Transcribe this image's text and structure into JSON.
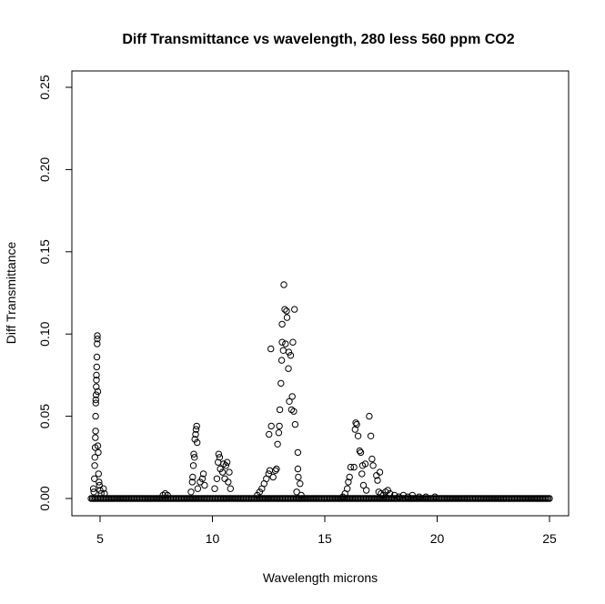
{
  "chart_data": {
    "type": "scatter",
    "title": "Diff Transmittance vs wavelength, 280 less 560 ppm CO2",
    "xlabel": "Wavelength microns",
    "ylabel": "Diff Transmittance",
    "xlim": [
      3.9,
      26.0
    ],
    "ylim": [
      -0.01,
      0.26
    ],
    "xticks": [
      5,
      10,
      15,
      20,
      25
    ],
    "xtick_labels": [
      "5",
      "10",
      "15",
      "20",
      "25"
    ],
    "yticks": [
      0.0,
      0.05,
      0.1,
      0.15,
      0.2,
      0.25
    ],
    "ytick_labels": [
      "0.00",
      "0.05",
      "0.10",
      "0.15",
      "0.20",
      "0.25"
    ],
    "grid": false,
    "marker": "open-circle",
    "baseline": {
      "from": 4.6,
      "to": 25.0,
      "step": 0.06,
      "y": 0.0
    },
    "points": [
      [
        4.7,
        0.006
      ],
      [
        4.72,
        0.004
      ],
      [
        4.75,
        0.012
      ],
      [
        4.76,
        0.02
      ],
      [
        4.77,
        0.025
      ],
      [
        4.78,
        0.031
      ],
      [
        4.79,
        0.037
      ],
      [
        4.8,
        0.041
      ],
      [
        4.8,
        0.05
      ],
      [
        4.81,
        0.058
      ],
      [
        4.81,
        0.06
      ],
      [
        4.82,
        0.063
      ],
      [
        4.83,
        0.068
      ],
      [
        4.84,
        0.072
      ],
      [
        4.84,
        0.075
      ],
      [
        4.85,
        0.08
      ],
      [
        4.86,
        0.086
      ],
      [
        4.87,
        0.094
      ],
      [
        4.88,
        0.097
      ],
      [
        4.88,
        0.099
      ],
      [
        4.9,
        0.065
      ],
      [
        4.9,
        0.032
      ],
      [
        4.92,
        0.028
      ],
      [
        4.93,
        0.015
      ],
      [
        4.95,
        0.01
      ],
      [
        4.97,
        0.008
      ],
      [
        5.0,
        0.005
      ],
      [
        5.05,
        0.003
      ],
      [
        5.15,
        0.006
      ],
      [
        5.2,
        0.003
      ],
      [
        7.8,
        0.002
      ],
      [
        7.9,
        0.003
      ],
      [
        8.0,
        0.002
      ],
      [
        9.05,
        0.004
      ],
      [
        9.1,
        0.01
      ],
      [
        9.12,
        0.013
      ],
      [
        9.15,
        0.02
      ],
      [
        9.17,
        0.027
      ],
      [
        9.2,
        0.025
      ],
      [
        9.22,
        0.036
      ],
      [
        9.25,
        0.039
      ],
      [
        9.27,
        0.042
      ],
      [
        9.3,
        0.044
      ],
      [
        9.32,
        0.034
      ],
      [
        9.35,
        0.006
      ],
      [
        9.45,
        0.01
      ],
      [
        9.55,
        0.012
      ],
      [
        9.6,
        0.015
      ],
      [
        9.65,
        0.008
      ],
      [
        10.1,
        0.006
      ],
      [
        10.2,
        0.012
      ],
      [
        10.25,
        0.022
      ],
      [
        10.28,
        0.027
      ],
      [
        10.32,
        0.025
      ],
      [
        10.35,
        0.018
      ],
      [
        10.45,
        0.016
      ],
      [
        10.5,
        0.021
      ],
      [
        10.55,
        0.012
      ],
      [
        10.6,
        0.02
      ],
      [
        10.65,
        0.022
      ],
      [
        10.7,
        0.01
      ],
      [
        10.75,
        0.016
      ],
      [
        10.8,
        0.006
      ],
      [
        12.0,
        0.002
      ],
      [
        12.1,
        0.004
      ],
      [
        12.2,
        0.006
      ],
      [
        12.3,
        0.009
      ],
      [
        12.4,
        0.012
      ],
      [
        12.5,
        0.015
      ],
      [
        12.55,
        0.017
      ],
      [
        12.7,
        0.013
      ],
      [
        12.8,
        0.017
      ],
      [
        12.85,
        0.018
      ],
      [
        12.52,
        0.039
      ],
      [
        12.62,
        0.044
      ],
      [
        12.6,
        0.091
      ],
      [
        12.9,
        0.033
      ],
      [
        12.95,
        0.04
      ],
      [
        12.98,
        0.044
      ],
      [
        13.0,
        0.054
      ],
      [
        13.05,
        0.07
      ],
      [
        13.08,
        0.084
      ],
      [
        13.1,
        0.095
      ],
      [
        13.1,
        0.106
      ],
      [
        13.15,
        0.09
      ],
      [
        13.18,
        0.13
      ],
      [
        13.22,
        0.115
      ],
      [
        13.25,
        0.094
      ],
      [
        13.3,
        0.114
      ],
      [
        13.32,
        0.11
      ],
      [
        13.38,
        0.079
      ],
      [
        13.4,
        0.089
      ],
      [
        13.42,
        0.059
      ],
      [
        13.48,
        0.087
      ],
      [
        13.52,
        0.054
      ],
      [
        13.55,
        0.062
      ],
      [
        13.58,
        0.095
      ],
      [
        13.62,
        0.053
      ],
      [
        13.65,
        0.115
      ],
      [
        13.68,
        0.045
      ],
      [
        13.8,
        0.028
      ],
      [
        13.8,
        0.018
      ],
      [
        13.82,
        0.013
      ],
      [
        13.9,
        0.009
      ],
      [
        13.75,
        0.004
      ],
      [
        13.95,
        0.002
      ],
      [
        15.8,
        0.001
      ],
      [
        15.9,
        0.003
      ],
      [
        16.0,
        0.006
      ],
      [
        16.05,
        0.01
      ],
      [
        16.1,
        0.013
      ],
      [
        16.15,
        0.019
      ],
      [
        16.3,
        0.019
      ],
      [
        16.38,
        0.046
      ],
      [
        16.42,
        0.045
      ],
      [
        16.35,
        0.042
      ],
      [
        16.48,
        0.038
      ],
      [
        16.55,
        0.029
      ],
      [
        16.6,
        0.028
      ],
      [
        16.65,
        0.015
      ],
      [
        16.68,
        0.02
      ],
      [
        16.72,
        0.008
      ],
      [
        16.8,
        0.021
      ],
      [
        16.85,
        0.005
      ],
      [
        16.98,
        0.05
      ],
      [
        17.05,
        0.038
      ],
      [
        17.1,
        0.024
      ],
      [
        17.15,
        0.02
      ],
      [
        17.3,
        0.014
      ],
      [
        17.35,
        0.011
      ],
      [
        17.4,
        0.004
      ],
      [
        17.45,
        0.016
      ],
      [
        17.5,
        0.003
      ],
      [
        17.6,
        0.002
      ],
      [
        17.7,
        0.004
      ],
      [
        17.8,
        0.005
      ],
      [
        17.9,
        0.003
      ],
      [
        18.1,
        0.002
      ],
      [
        18.3,
        0.001
      ],
      [
        18.5,
        0.002
      ],
      [
        18.7,
        0.001
      ],
      [
        18.9,
        0.002
      ],
      [
        19.2,
        0.001
      ],
      [
        19.5,
        0.001
      ],
      [
        19.9,
        0.001
      ]
    ]
  }
}
